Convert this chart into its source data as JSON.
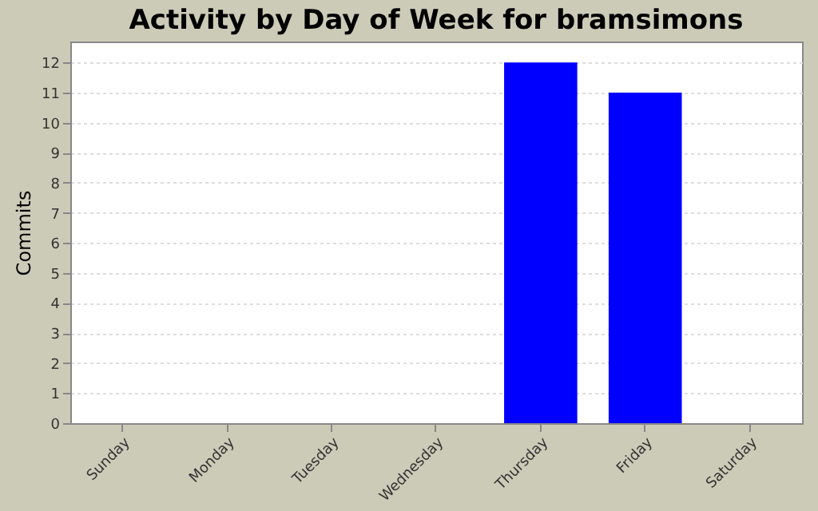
{
  "chart_data": {
    "type": "bar",
    "title": "Activity by Day of Week for bramsimons",
    "ylabel": "Commits",
    "categories": [
      "Sunday",
      "Monday",
      "Tuesday",
      "Wednesday",
      "Thursday",
      "Friday",
      "Saturday"
    ],
    "series": [
      {
        "color": "#0000ff",
        "values": [
          0,
          0,
          0,
          0,
          12,
          11,
          0
        ]
      }
    ],
    "ylim": [
      0,
      12.7
    ],
    "yticks": [
      0,
      1,
      2,
      3,
      4,
      5,
      6,
      7,
      8,
      9,
      10,
      11,
      12
    ],
    "grid": "y",
    "legend": false
  }
}
